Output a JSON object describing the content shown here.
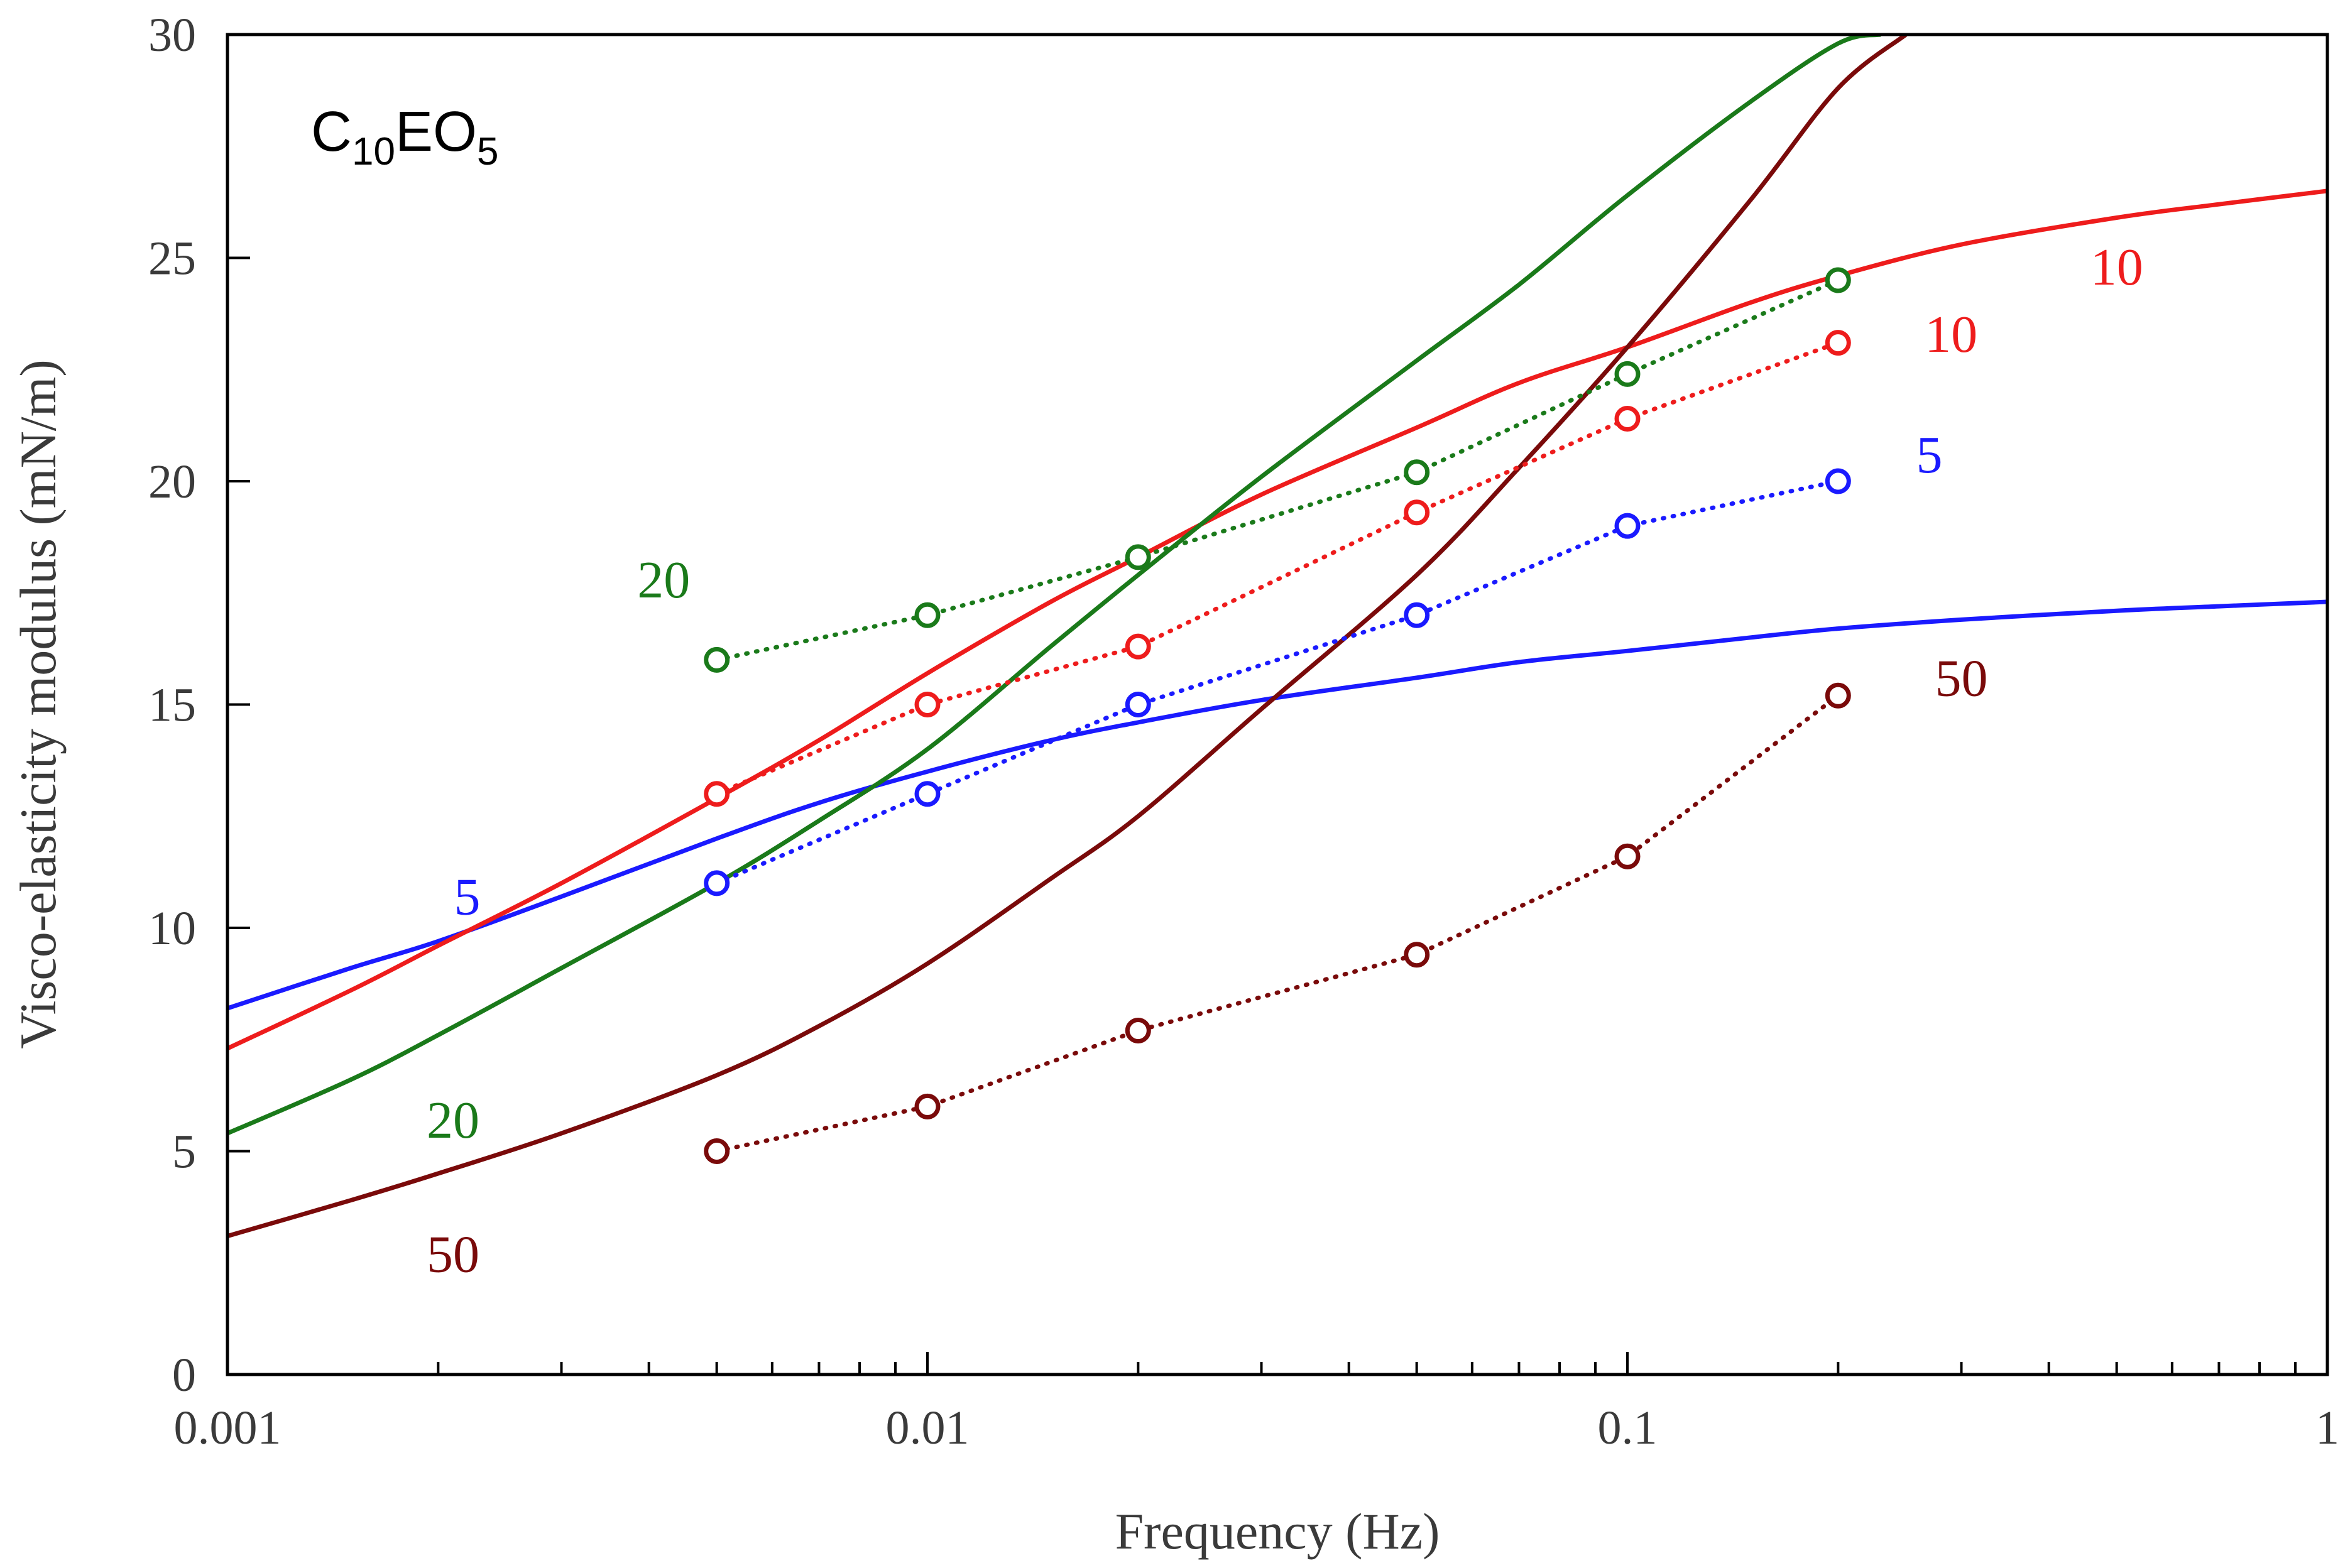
{
  "chart_data": {
    "type": "line",
    "title_main": "C",
    "title_sub1": "10",
    "title_mid": "EO",
    "title_sub2": "5",
    "xlabel": "Frequency (Hz)",
    "ylabel": "Visco-elasticity modulus (mN/m)",
    "xscale": "log",
    "xlim": [
      0.001,
      1
    ],
    "ylim": [
      0,
      30
    ],
    "xticks": [
      {
        "value": 0.001,
        "label": "0.001"
      },
      {
        "value": 0.01,
        "label": "0.01"
      },
      {
        "value": 0.1,
        "label": "0.1"
      },
      {
        "value": 1,
        "label": "1"
      }
    ],
    "yticks": [
      {
        "value": 0,
        "label": "0"
      },
      {
        "value": 5,
        "label": "5"
      },
      {
        "value": 10,
        "label": "10"
      },
      {
        "value": 15,
        "label": "15"
      },
      {
        "value": 20,
        "label": "20"
      },
      {
        "value": 25,
        "label": "25"
      },
      {
        "value": 30,
        "label": "30"
      }
    ],
    "series": [
      {
        "name": "5",
        "color": "#1a1aff",
        "style": "solid-curve",
        "x": [
          0.001,
          0.0015,
          0.002,
          0.003,
          0.005,
          0.007,
          0.01,
          0.015,
          0.02,
          0.03,
          0.05,
          0.07,
          0.1,
          0.15,
          0.2,
          0.3,
          0.5,
          0.7,
          1.0
        ],
        "y": [
          8.2,
          9.1,
          9.7,
          10.7,
          12.0,
          12.8,
          13.5,
          14.2,
          14.6,
          15.1,
          15.6,
          15.95,
          16.2,
          16.5,
          16.7,
          16.9,
          17.1,
          17.2,
          17.3
        ]
      },
      {
        "name": "10",
        "color": "#ee1c1c",
        "style": "solid-curve",
        "x": [
          0.001,
          0.0015,
          0.002,
          0.003,
          0.005,
          0.007,
          0.01,
          0.015,
          0.02,
          0.03,
          0.05,
          0.07,
          0.1,
          0.15,
          0.2,
          0.3,
          0.5,
          0.7,
          1.0
        ],
        "y": [
          7.3,
          8.6,
          9.6,
          11.0,
          12.9,
          14.2,
          15.7,
          17.3,
          18.3,
          19.7,
          21.2,
          22.2,
          23.0,
          24.0,
          24.6,
          25.3,
          25.9,
          26.2,
          26.5
        ]
      },
      {
        "name": "20",
        "color": "#1a7a1a",
        "style": "solid-curve",
        "x": [
          0.001,
          0.0015,
          0.002,
          0.003,
          0.005,
          0.007,
          0.01,
          0.015,
          0.02,
          0.03,
          0.05,
          0.07,
          0.1,
          0.15,
          0.2,
          0.23
        ],
        "y": [
          5.4,
          6.6,
          7.6,
          9.1,
          11.0,
          12.4,
          14.0,
          16.3,
          17.9,
          20.1,
          22.7,
          24.4,
          26.4,
          28.5,
          29.8,
          30.0
        ]
      },
      {
        "name": "50",
        "color": "#7a0a0a",
        "style": "solid-curve",
        "x": [
          0.001,
          0.0015,
          0.002,
          0.003,
          0.005,
          0.007,
          0.01,
          0.015,
          0.02,
          0.03,
          0.05,
          0.07,
          0.1,
          0.15,
          0.2,
          0.25
        ],
        "y": [
          3.1,
          3.9,
          4.5,
          5.4,
          6.7,
          7.8,
          9.2,
          11.1,
          12.5,
          14.9,
          17.9,
          20.3,
          23.0,
          26.3,
          28.8,
          30.0
        ]
      },
      {
        "name": "5",
        "color": "#1a1aff",
        "style": "dotted-markers",
        "x": [
          0.005,
          0.01,
          0.02,
          0.05,
          0.1,
          0.2
        ],
        "y": [
          11.0,
          13.0,
          15.0,
          17.0,
          19.0,
          20.0
        ]
      },
      {
        "name": "10",
        "color": "#ee1c1c",
        "style": "dotted-markers",
        "x": [
          0.005,
          0.01,
          0.02,
          0.05,
          0.1,
          0.2
        ],
        "y": [
          13.0,
          15.0,
          16.3,
          19.3,
          21.4,
          23.1
        ]
      },
      {
        "name": "20",
        "color": "#1a7a1a",
        "style": "dotted-markers",
        "x": [
          0.005,
          0.01,
          0.02,
          0.05,
          0.1,
          0.2
        ],
        "y": [
          16.0,
          17.0,
          18.3,
          20.2,
          22.4,
          24.5
        ]
      },
      {
        "name": "50",
        "color": "#7a0a0a",
        "style": "dotted-markers",
        "x": [
          0.005,
          0.01,
          0.02,
          0.05,
          0.1,
          0.2
        ],
        "y": [
          5.0,
          6.0,
          7.7,
          9.4,
          11.6,
          15.2
        ]
      }
    ],
    "annotations": [
      {
        "text": "5",
        "color": "#1a1aff",
        "x": 0.0022,
        "y": 10.3
      },
      {
        "text": "20",
        "color": "#1a7a1a",
        "x": 0.0021,
        "y": 5.3
      },
      {
        "text": "50",
        "color": "#7a0a0a",
        "x": 0.0021,
        "y": 2.3
      },
      {
        "text": "20",
        "color": "#1a7a1a",
        "x": 0.0042,
        "y": 17.4
      },
      {
        "text": "10",
        "color": "#ee1c1c",
        "x": 0.5,
        "y": 24.4
      },
      {
        "text": "10",
        "color": "#ee1c1c",
        "x": 0.29,
        "y": 22.9
      },
      {
        "text": "5",
        "color": "#1a1aff",
        "x": 0.27,
        "y": 20.2
      },
      {
        "text": "50",
        "color": "#7a0a0a",
        "x": 0.3,
        "y": 15.2
      }
    ]
  }
}
